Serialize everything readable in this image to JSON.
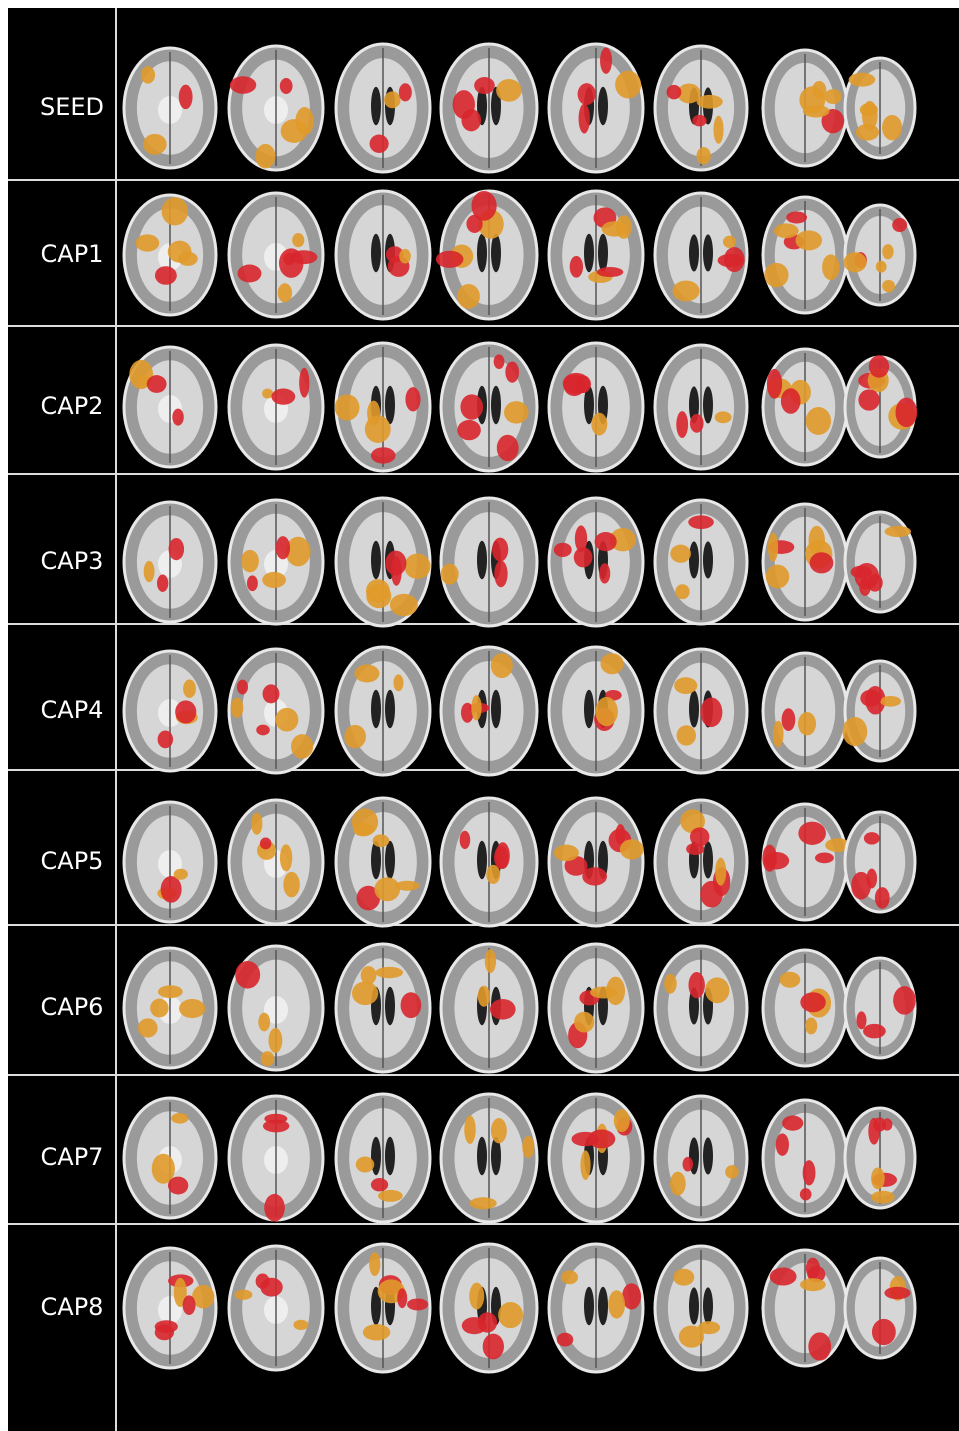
{
  "rows": [
    "SEED",
    "CAP1",
    "CAP2",
    "CAP3",
    "CAP4",
    "CAP5",
    "CAP6",
    "CAP7",
    "CAP8"
  ]
}
